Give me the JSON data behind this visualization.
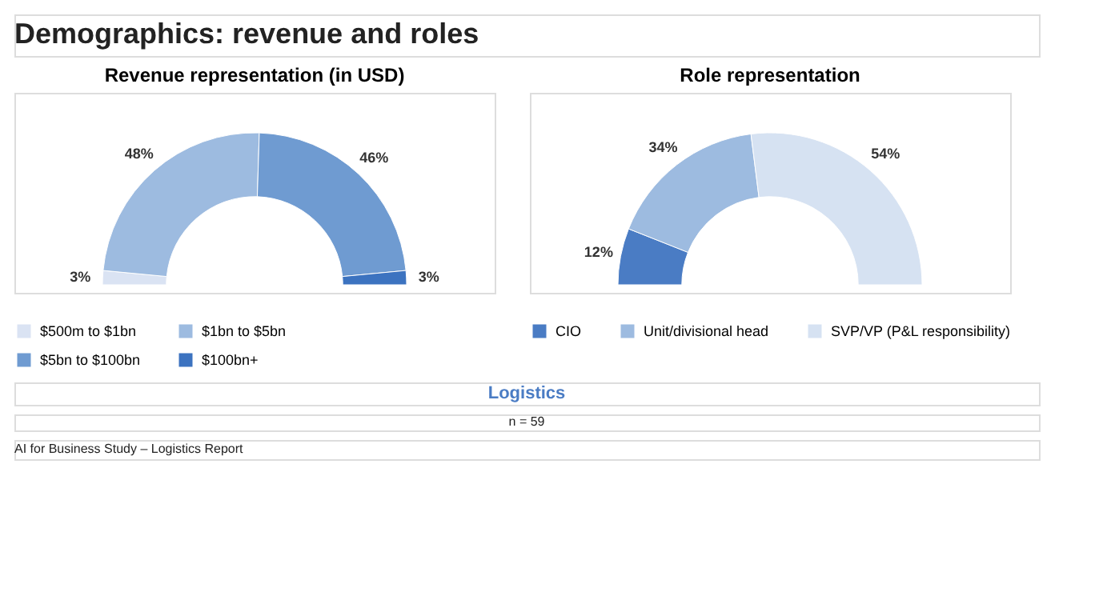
{
  "chart_data": [
    {
      "type": "donut",
      "title": "Revenue representation (in USD)",
      "annotations": [
        "Demographics: revenue and roles"
      ],
      "categories": [
        "$500m to $1bn",
        "$1bn to $5bn",
        "$5bn to $100bn",
        "$100bn+"
      ],
      "values": [
        3,
        48,
        46,
        3
      ],
      "value_labels": [
        "3%",
        "48%",
        "46%",
        "3%"
      ],
      "colors": [
        "#dae3f3",
        "#9dbbe0",
        "#6f9bd1",
        "#3c73c0"
      ],
      "legend": "bottom"
    },
    {
      "type": "donut",
      "title": "Role representation",
      "annotations": [
        "Logistics",
        "n = 59",
        "AI for Business Study – Logistics Report"
      ],
      "categories": [
        "CIO",
        "Unit/divisional head",
        "SVP/VP (P&L responsibility)"
      ],
      "values": [
        12,
        34,
        54
      ],
      "value_labels": [
        "12%",
        "34%",
        "54%"
      ],
      "colors": [
        "#4a7cc4",
        "#9dbbe0",
        "#d6e2f2"
      ],
      "legend": "bottom"
    }
  ]
}
